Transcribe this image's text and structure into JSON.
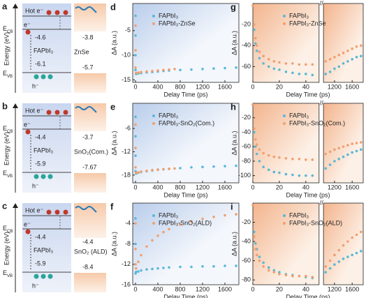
{
  "diagrams": [
    {
      "panel": "a",
      "axis_label": "Energy (eV)",
      "hot_electron": "Hot e⁻",
      "electron": "e⁻",
      "ecb": "ECB",
      "evb": "EVB",
      "hole": "h⁻",
      "material": "FAPbI₃",
      "acceptor": "ZnSe",
      "cb_value": -4.6,
      "acceptor_cb": -3.8,
      "vb_value": -6.1,
      "acceptor_vb": -5.7
    },
    {
      "panel": "b",
      "axis_label": "Energy (eV)",
      "hot_electron": "Hot e⁻",
      "electron": "e⁻",
      "ecb": "ECB",
      "evb": "EVB",
      "hole": "h⁻",
      "material": "FAPbI₃",
      "acceptor": "SnO₂(Com.)",
      "cb_value": -4.4,
      "acceptor_cb": -3.7,
      "vb_value": -5.9,
      "acceptor_vb": -7.67
    },
    {
      "panel": "c",
      "axis_label": "Energy (eV)",
      "hot_electron": "Hot e⁻",
      "electron": "e⁻",
      "ecb": "ECB",
      "evb": "EVB",
      "hole": "h⁻",
      "material": "FAPbI₃",
      "acceptor": "SnO₂ (ALD)",
      "cb_value": -4.4,
      "acceptor_cb": -4.4,
      "vb_value": -5.9,
      "acceptor_vb": -8.4
    }
  ],
  "chart_data": [
    {
      "type": "scatter",
      "panel": "d",
      "x_label": "Delay Time (ps)",
      "y_label": "ΔA (a.u.)",
      "xlim": [
        -50,
        1850
      ],
      "xticks": [
        0,
        400,
        800,
        1200,
        1600
      ],
      "ylim": [
        -15.5,
        0.5
      ],
      "yticks": [
        -15,
        -10,
        -5
      ],
      "series": [
        {
          "name": "FAPbI₃",
          "color": "#5bb8d6",
          "x": [
            0,
            0,
            0,
            0,
            10,
            50,
            100,
            200,
            300,
            400,
            500,
            600,
            800,
            1000,
            1200,
            1400,
            1600,
            1800
          ],
          "y": [
            -2,
            -6,
            -10,
            -13,
            -13.8,
            -13.7,
            -13.6,
            -13.5,
            -13.4,
            -13.3,
            -13.2,
            -13.1,
            -13,
            -12.9,
            -12.8,
            -12.7,
            -12.6,
            -12.5
          ]
        },
        {
          "name": "FAPbI₃-ZnSe",
          "color": "#f0a070",
          "x": [
            0,
            0,
            0,
            10,
            50,
            100,
            200,
            300,
            400,
            500,
            600,
            700
          ],
          "y": [
            -4,
            -9,
            -12.5,
            -13.6,
            -13.5,
            -13.4,
            -13.3,
            -13.2,
            -13.1,
            -13,
            -12.9,
            -12.8
          ]
        }
      ]
    },
    {
      "type": "scatter",
      "panel": "e",
      "x_label": "Delay Time (ps)",
      "y_label": "ΔA (a.u.)",
      "xlim": [
        -50,
        1850
      ],
      "xticks": [
        0,
        400,
        800,
        1200,
        1600
      ],
      "ylim": [
        -20,
        0.5
      ],
      "yticks": [
        -18,
        -12,
        -6
      ],
      "series": [
        {
          "name": "FAPbI₃",
          "color": "#5bb8d6",
          "x": [
            0,
            0,
            0,
            0,
            10,
            50,
            100,
            200,
            300,
            400,
            500,
            600,
            800,
            1000,
            1200,
            1400,
            1600,
            1800
          ],
          "y": [
            -3,
            -8,
            -13,
            -17,
            -17.6,
            -17.4,
            -17.2,
            -17,
            -16.8,
            -16.6,
            -16.5,
            -16.4,
            -16.2,
            -16,
            -15.9,
            -15.8,
            -15.7,
            -15.6
          ]
        },
        {
          "name": "FAPbI₃-SnO₂(Com.)",
          "color": "#f0a070",
          "x": [
            0,
            0,
            0,
            10,
            50,
            100,
            200,
            300,
            400,
            500,
            600,
            700
          ],
          "y": [
            -5,
            -11,
            -16,
            -17.4,
            -17.3,
            -17.1,
            -16.9,
            -16.7,
            -16.6,
            -16.5,
            -16.4,
            -16.3
          ]
        }
      ]
    },
    {
      "type": "scatter",
      "panel": "f",
      "x_label": "Delay Time (ps)",
      "y_label": "ΔA (a.u.)",
      "xlim": [
        -50,
        1850
      ],
      "xticks": [
        0,
        400,
        800,
        1200,
        1600
      ],
      "ylim": [
        -16,
        0
      ],
      "yticks": [
        -16,
        -12,
        -8,
        -4
      ],
      "series": [
        {
          "name": "FAPbI₃",
          "color": "#5bb8d6",
          "x": [
            0,
            0,
            0,
            0,
            10,
            50,
            100,
            200,
            300,
            400,
            500,
            600,
            800,
            1000,
            1200,
            1400,
            1600,
            1800
          ],
          "y": [
            -3,
            -8,
            -12,
            -13.8,
            -13.5,
            -13.4,
            -13.2,
            -13,
            -12.9,
            -12.8,
            -12.7,
            -12.6,
            -12.5,
            -12.5,
            -12.4,
            -12.4,
            -12.3,
            -12.3
          ]
        },
        {
          "name": "FAPbI₃-SnO₂(ALD)",
          "color": "#f0a070",
          "x": [
            0,
            0,
            0,
            10,
            50,
            100,
            200,
            300,
            400,
            500,
            600,
            800,
            1000,
            1200,
            1400,
            1600,
            1800
          ],
          "y": [
            -4,
            -9,
            -12,
            -12.8,
            -11.5,
            -10.2,
            -8.5,
            -7.3,
            -6.4,
            -5.7,
            -5.1,
            -4.2,
            -3.6,
            -3.1,
            -2.7,
            -2.4,
            -2.2
          ]
        }
      ]
    },
    {
      "type": "scatter",
      "panel": "g",
      "x_label": "Delay Time (ps)",
      "y_label": "ΔA (a.u.)",
      "xlim": [
        [
          0,
          50
        ],
        [
          950,
          1850
        ]
      ],
      "xticks": [
        0,
        20,
        40,
        1200,
        1600
      ],
      "ylim": [
        -75,
        0
      ],
      "yticks": [
        -60,
        -40,
        -20
      ],
      "series": [
        {
          "name": "FAPbI₃",
          "color": "#5bb8d6",
          "x": [
            0,
            1,
            2,
            3,
            5,
            8,
            12,
            16,
            20,
            25,
            30,
            35,
            40,
            45,
            1000,
            1100,
            1200,
            1300,
            1400,
            1500,
            1600,
            1700,
            1800
          ],
          "y": [
            -2,
            -25,
            -38,
            -45,
            -52,
            -57,
            -60,
            -62,
            -63,
            -65,
            -66,
            -67,
            -67,
            -68,
            -67,
            -65,
            -62,
            -60,
            -57,
            -55,
            -53,
            -51,
            -50
          ]
        },
        {
          "name": "FAPbI₃-ZnSe",
          "color": "#f0a070",
          "x": [
            0,
            1,
            2,
            3,
            5,
            8,
            12,
            16,
            20,
            25,
            30,
            35,
            40,
            45,
            1000,
            1100,
            1200,
            1300,
            1400,
            1500,
            1600,
            1700,
            1800
          ],
          "y": [
            -2,
            -20,
            -33,
            -40,
            -46,
            -50,
            -53,
            -55,
            -56,
            -57,
            -57,
            -58,
            -58,
            -58,
            -55,
            -53,
            -51,
            -49,
            -47,
            -45,
            -43,
            -41,
            -40
          ]
        }
      ]
    },
    {
      "type": "scatter",
      "panel": "h",
      "x_label": "Delay Time (ps)",
      "y_label": "ΔA (a.u.)",
      "xlim": [
        [
          0,
          50
        ],
        [
          950,
          1850
        ]
      ],
      "xticks": [
        0,
        20,
        40,
        1200,
        1600
      ],
      "ylim": [
        -110,
        0
      ],
      "yticks": [
        -100,
        -80,
        -60,
        -40,
        -20
      ],
      "series": [
        {
          "name": "FAPbI₃",
          "color": "#5bb8d6",
          "x": [
            0,
            1,
            2,
            3,
            5,
            8,
            12,
            16,
            20,
            25,
            30,
            35,
            40,
            45,
            1000,
            1100,
            1200,
            1300,
            1400,
            1500,
            1600,
            1700,
            1800
          ],
          "y": [
            -2,
            -40,
            -60,
            -70,
            -80,
            -88,
            -92,
            -95,
            -96,
            -98,
            -99,
            -100,
            -100,
            -100,
            -90,
            -85,
            -80,
            -77,
            -74,
            -71,
            -68,
            -66,
            -64
          ]
        },
        {
          "name": "FAPbI₃-SnO₂(Com.)",
          "color": "#f0a070",
          "x": [
            0,
            1,
            2,
            3,
            5,
            8,
            12,
            16,
            20,
            25,
            30,
            35,
            40,
            45,
            1000,
            1100,
            1200,
            1300,
            1400,
            1500,
            1600,
            1700,
            1800
          ],
          "y": [
            -2,
            -35,
            -50,
            -57,
            -64,
            -69,
            -72,
            -74,
            -75,
            -76,
            -77,
            -77,
            -78,
            -78,
            -70,
            -67,
            -64,
            -62,
            -60,
            -58,
            -56,
            -55,
            -54
          ]
        }
      ]
    },
    {
      "type": "scatter",
      "panel": "i",
      "x_label": "Delay Time (ps)",
      "y_label": "ΔA (a.u.)",
      "xlim": [
        [
          0,
          50
        ],
        [
          950,
          1850
        ]
      ],
      "xticks": [
        0,
        20,
        40,
        1200,
        1600
      ],
      "ylim": [
        -85,
        0
      ],
      "yticks": [
        -80,
        -60,
        -40,
        -20
      ],
      "series": [
        {
          "name": "FAPbI₃",
          "color": "#5bb8d6",
          "x": [
            0,
            1,
            2,
            3,
            5,
            8,
            12,
            16,
            20,
            25,
            30,
            35,
            40,
            45,
            1000,
            1100,
            1200,
            1300,
            1400,
            1500,
            1600,
            1700,
            1800
          ],
          "y": [
            -2,
            -30,
            -42,
            -48,
            -56,
            -62,
            -67,
            -70,
            -72,
            -74,
            -75,
            -76,
            -77,
            -78,
            -72,
            -68,
            -64,
            -61,
            -58,
            -56,
            -54,
            -52,
            -50
          ]
        },
        {
          "name": "FAPbI₃-SnO₂(ALD)",
          "color": "#f0a070",
          "x": [
            0,
            1,
            2,
            3,
            5,
            8,
            12,
            16,
            20,
            25,
            30,
            35,
            40,
            45,
            1000,
            1100,
            1200,
            1300,
            1400,
            1500,
            1600,
            1700,
            1800
          ],
          "y": [
            -2,
            -35,
            -48,
            -54,
            -60,
            -66,
            -70,
            -72,
            -74,
            -75,
            -76,
            -76,
            -76,
            -77,
            -66,
            -60,
            -54,
            -49,
            -44,
            -40,
            -36,
            -33,
            -30
          ]
        }
      ]
    }
  ]
}
